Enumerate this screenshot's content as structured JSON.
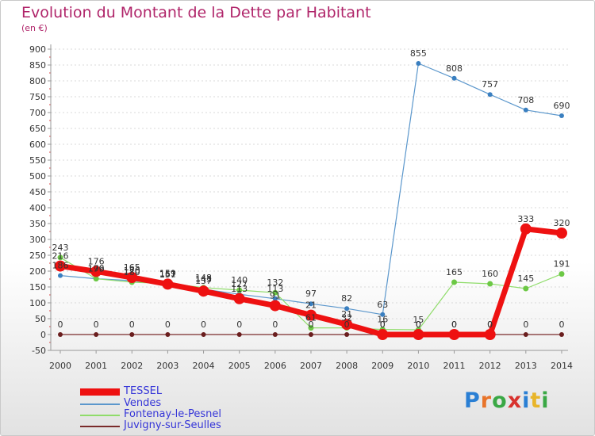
{
  "title": "Evolution du Montant de la Dette par Habitant",
  "subtitle": "(en €)",
  "logo_text": "Proxiti",
  "chart_data": {
    "type": "line",
    "title": "Evolution du Montant de la Dette par Habitant",
    "ylabel": "(en €)",
    "ylim": [
      -50,
      900
    ],
    "yticks": [
      -50,
      0,
      50,
      100,
      150,
      200,
      250,
      300,
      350,
      400,
      450,
      500,
      550,
      600,
      650,
      700,
      750,
      800,
      850,
      900
    ],
    "categories": [
      "2000",
      "2001",
      "2002",
      "2003",
      "2004",
      "2005",
      "2006",
      "2007",
      "2008",
      "2009",
      "2010",
      "2011",
      "2012",
      "2013",
      "2014"
    ],
    "series": [
      {
        "name": "Vendes",
        "color": "#5b97cc",
        "values": [
          186,
          176,
          170,
          157,
          143,
          127,
          113,
          97,
          82,
          63,
          855,
          808,
          757,
          708,
          690
        ]
      },
      {
        "name": "Fontenay-le-Pesnel",
        "color": "#8fdc6a",
        "values": [
          243,
          176,
          165,
          161,
          148,
          140,
          132,
          21,
          21,
          16,
          15,
          165,
          160,
          145,
          191
        ]
      },
      {
        "name": "Juvigny-sur-Seulles",
        "color": "#7a2b2b",
        "values": [
          0,
          0,
          0,
          0,
          0,
          0,
          0,
          0,
          0,
          0,
          0,
          0,
          0,
          0,
          0
        ]
      },
      {
        "name": "TESSEL",
        "color": "#ee1111",
        "values": [
          216,
          199,
          180,
          159,
          137,
          113,
          91,
          61,
          32,
          0,
          0,
          0,
          0,
          333,
          320
        ]
      }
    ],
    "data_labels": [
      {
        "year": "2000",
        "labels": [
          "186",
          "243",
          "0",
          "216"
        ]
      },
      {
        "year": "2001",
        "labels": [
          "176",
          "199",
          "0",
          "176"
        ]
      },
      {
        "year": "2002",
        "labels": [
          "170",
          "180",
          "0",
          "165"
        ]
      },
      {
        "year": "2003",
        "labels": [
          "157",
          "159",
          "0",
          "161"
        ]
      },
      {
        "year": "2004",
        "labels": [
          "143",
          "148",
          "0",
          "137"
        ]
      },
      {
        "year": "2005",
        "labels": [
          "127",
          "140",
          "0",
          "113"
        ]
      },
      {
        "year": "2006",
        "labels": [
          "113",
          "132",
          "0",
          "91"
        ]
      },
      {
        "year": "2007",
        "labels": [
          "97",
          "61",
          "0",
          "21"
        ]
      },
      {
        "year": "2008",
        "labels": [
          "82",
          "32",
          "0",
          "21"
        ]
      },
      {
        "year": "2009",
        "labels": [
          "63",
          "16",
          "0",
          "0"
        ]
      },
      {
        "year": "2010",
        "labels": [
          "855",
          "15",
          "0",
          "0"
        ]
      },
      {
        "year": "2011",
        "labels": [
          "808",
          "165",
          "0",
          "0"
        ]
      },
      {
        "year": "2012",
        "labels": [
          "757",
          "160",
          "0",
          "0"
        ]
      },
      {
        "year": "2013",
        "labels": [
          "708",
          "145",
          "0",
          "333"
        ]
      },
      {
        "year": "2014",
        "labels": [
          "690",
          "191",
          "0",
          "320"
        ]
      }
    ],
    "legend": [
      "TESSEL",
      "Vendes",
      "Fontenay-le-Pesnel",
      "Juvigny-sur-Seulles"
    ],
    "legend_position": "bottom-left"
  }
}
